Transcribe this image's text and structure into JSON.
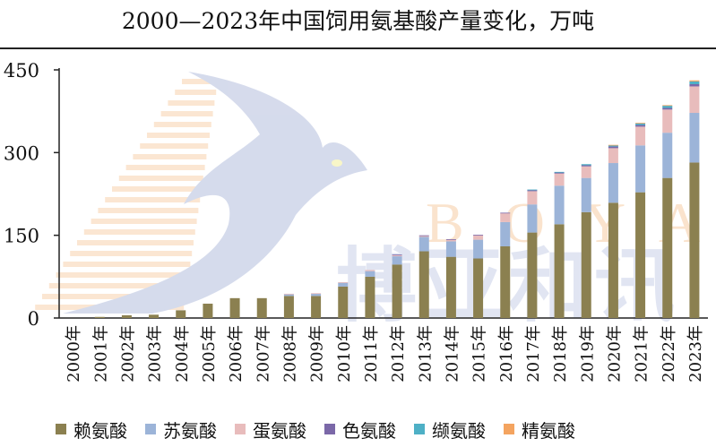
{
  "chart_data": {
    "type": "bar",
    "stacked": true,
    "title": "2000—2023年中国饲用氨基酸产量变化，万吨",
    "ylim": [
      0,
      450
    ],
    "yticks": [
      0,
      150,
      300,
      450
    ],
    "grid": false,
    "legend_position": "bottom",
    "categories": [
      "2000年",
      "2001年",
      "2002年",
      "2003年",
      "2004年",
      "2005年",
      "2006年",
      "2007年",
      "2008年",
      "2009年",
      "2010年",
      "2011年",
      "2012年",
      "2013年",
      "2014年",
      "2015年",
      "2016年",
      "2017年",
      "2018年",
      "2019年",
      "2020年",
      "2021年",
      "2022年",
      "2023年"
    ],
    "series": [
      {
        "name": "赖氨酸",
        "color": "#8b8050",
        "values": [
          0,
          2,
          5,
          6,
          14,
          26,
          36,
          36,
          40,
          40,
          57,
          75,
          97,
          121,
          111,
          108,
          130,
          155,
          170,
          192,
          209,
          228,
          254,
          282
        ]
      },
      {
        "name": "苏氨酸",
        "color": "#9cb4d8",
        "values": [
          0,
          0,
          0,
          0,
          0,
          0,
          0,
          0,
          3,
          4,
          7,
          10,
          15,
          26,
          28,
          34,
          44,
          51,
          70,
          62,
          72,
          85,
          82,
          90
        ]
      },
      {
        "name": "蛋氨酸",
        "color": "#e8bcbc",
        "values": [
          0,
          0,
          0,
          0,
          0,
          0,
          0,
          0,
          1,
          1,
          1,
          2,
          2,
          2,
          3,
          8,
          16,
          24,
          22,
          21,
          27,
          34,
          42,
          48
        ]
      },
      {
        "name": "色氨酸",
        "color": "#7b68a8",
        "values": [
          0,
          0,
          0,
          0,
          0,
          0,
          0,
          0,
          0,
          0,
          0,
          0,
          1,
          1,
          1,
          1,
          1,
          2,
          2,
          2,
          3,
          3,
          3,
          4
        ]
      },
      {
        "name": "缬氨酸",
        "color": "#4eb0c6",
        "values": [
          0,
          0,
          0,
          0,
          0,
          0,
          0,
          0,
          0,
          0,
          0,
          0,
          0,
          0,
          0,
          0,
          0,
          1,
          1,
          2,
          2,
          3,
          4,
          5
        ]
      },
      {
        "name": "精氨酸",
        "color": "#f4a460",
        "values": [
          0,
          0,
          0,
          0,
          0,
          0,
          0,
          0,
          0,
          0,
          0,
          0,
          0,
          0,
          0,
          0,
          0,
          0,
          0,
          0,
          1,
          1,
          1,
          2
        ]
      }
    ]
  },
  "watermark": {
    "latin": "BOYAR",
    "chinese": "博亚和讯"
  }
}
